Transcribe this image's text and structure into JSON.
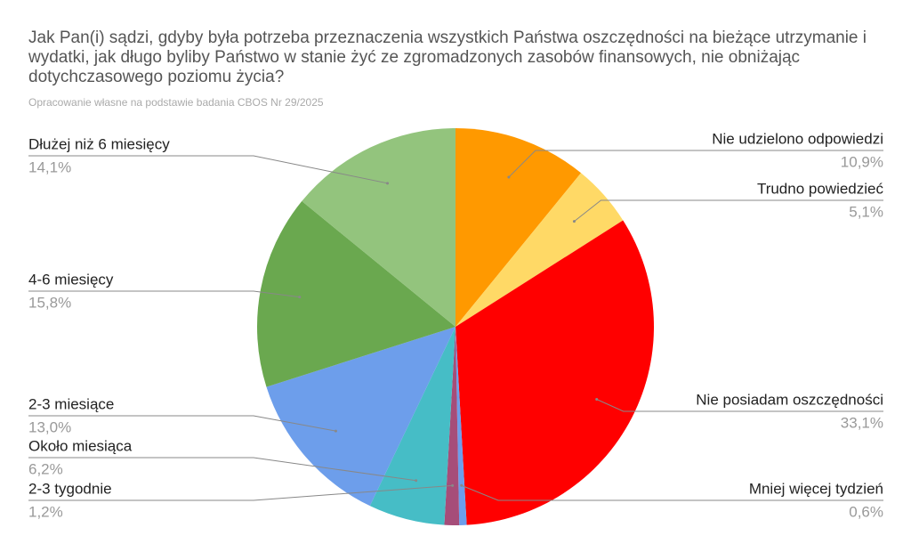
{
  "chart_data": {
    "type": "pie",
    "title": "Jak Pan(i) sądzi, gdyby była potrzeba przeznaczenia wszystkich Państwa oszczędności na bieżące utrzymanie i wydatki, jak długo byliby Państwo w stanie żyć ze zgromadzonych zasobów finansowych, nie obniżając dotychczasowego poziomu życia?",
    "subtitle": "Opracowanie własne na podstawie badania CBOS Nr 29/2025",
    "categories": [
      "Nie udzielono odpowiedzi",
      "Trudno powiedzieć",
      "Nie posiadam oszczędności",
      "Mniej więcej tydzień",
      "2-3 tygodnie",
      "Około miesiąca",
      "2-3 miesiące",
      "4-6 miesięcy",
      "Dłużej niż 6 miesięcy"
    ],
    "values": [
      10.9,
      5.1,
      33.1,
      0.6,
      1.2,
      6.2,
      13.0,
      15.8,
      14.1
    ],
    "value_labels": [
      "10,9%",
      "5,1%",
      "33,1%",
      "0,6%",
      "1,2%",
      "6,2%",
      "13,0%",
      "15,8%",
      "14,1%"
    ],
    "colors": [
      "#ff9900",
      "#ffd966",
      "#ff0000",
      "#6d9eeb",
      "#a64d79",
      "#46bdc6",
      "#6d9eeb",
      "#6aa84f",
      "#93c47d"
    ]
  }
}
